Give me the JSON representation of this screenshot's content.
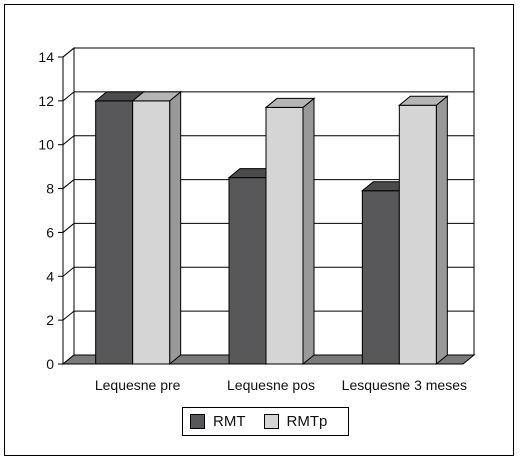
{
  "chart_data": {
    "type": "bar",
    "categories": [
      "Lequesne pre",
      "Lequesne pos",
      "Lesquesne 3 meses"
    ],
    "series": [
      {
        "name": "RMT",
        "values": [
          12,
          8.5,
          7.9
        ]
      },
      {
        "name": "RMTp",
        "values": [
          12,
          11.7,
          11.8
        ]
      }
    ],
    "ylim": [
      0,
      14
    ],
    "yticks": [
      0,
      2,
      4,
      6,
      8,
      10,
      12,
      14
    ],
    "grid": true,
    "legend_position": "bottom",
    "colors": {
      "RMT": "#58585a",
      "RMTp": "#d5d5d5",
      "wall": "#ffffff",
      "floor": "#7a7a7a"
    }
  },
  "legend": {
    "items": [
      "RMT",
      "RMTp"
    ]
  }
}
